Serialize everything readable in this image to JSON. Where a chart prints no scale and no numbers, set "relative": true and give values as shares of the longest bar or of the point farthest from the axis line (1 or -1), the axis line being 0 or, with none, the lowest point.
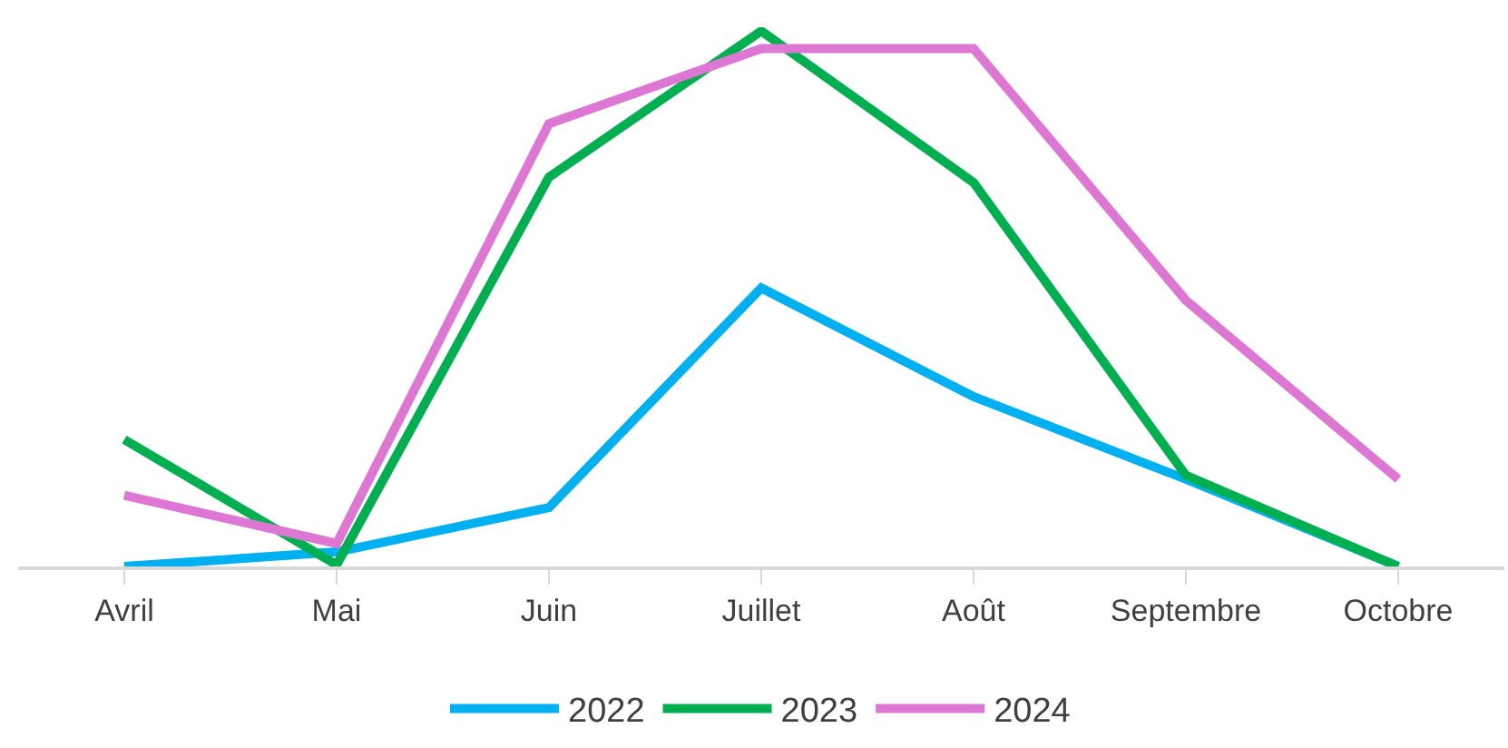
{
  "chart_data": {
    "type": "line",
    "relative": true,
    "categories": [
      "Avril",
      "Mai",
      "Juin",
      "Juillet",
      "Août",
      "Septembre",
      "Octobre"
    ],
    "series": [
      {
        "name": "2022",
        "color": "#00b0f0",
        "values": [
          0,
          0.027,
          0.11,
          0.52,
          0.317,
          0.163,
          0
        ]
      },
      {
        "name": "2023",
        "color": "#00b050",
        "values": [
          0.237,
          0.003,
          0.727,
          1,
          0.717,
          0.17,
          0
        ]
      },
      {
        "name": "2024",
        "color": "#dd77d3",
        "values": [
          0.133,
          0.043,
          0.827,
          0.967,
          0.967,
          0.497,
          0.163
        ]
      }
    ],
    "legend": "bottom",
    "marker": "none",
    "line_style": "solid"
  }
}
